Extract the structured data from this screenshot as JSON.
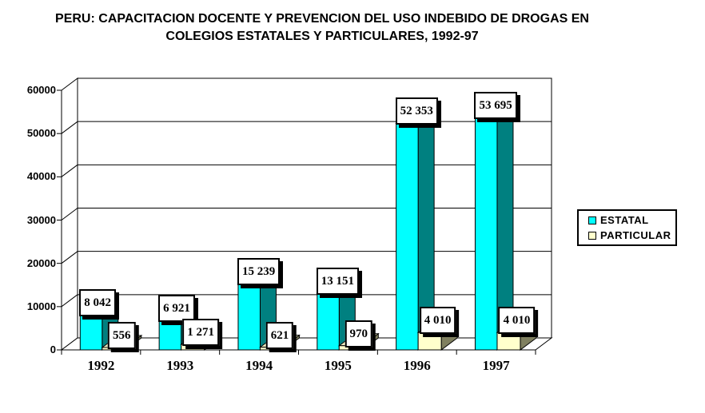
{
  "title": {
    "line1": "PERU: CAPACITACION DOCENTE Y PREVENCION DEL USO INDEBIDO DE DROGAS EN",
    "line2": "COLEGIOS ESTATALES Y PARTICULARES, 1992-97"
  },
  "legend": {
    "items": [
      {
        "label": "ESTATAL",
        "color": "#00FFFF"
      },
      {
        "label": "PARTICULAR",
        "color": "#FFFFCC"
      }
    ]
  },
  "chart_data": {
    "type": "bar",
    "style": "3d-clustered-column",
    "title": "PERU: CAPACITACION DOCENTE Y PREVENCION DEL USO INDEBIDO DE DROGAS EN COLEGIOS ESTATALES Y PARTICULARES, 1992-97",
    "categories": [
      "1992",
      "1993",
      "1994",
      "1995",
      "1996",
      "1997"
    ],
    "series": [
      {
        "name": "ESTATAL",
        "values": [
          8042,
          6921,
          15239,
          13151,
          52353,
          53695
        ],
        "value_labels": [
          "8 042",
          "6 921",
          "15 239",
          "13 151",
          "52 353",
          "53 695"
        ],
        "color_front": "#00FFFF",
        "color_side": "#008080",
        "color_top": "#00B8B8"
      },
      {
        "name": "PARTICULAR",
        "values": [
          556,
          1271,
          621,
          970,
          4010,
          4010
        ],
        "value_labels": [
          "556",
          "1 271",
          "621",
          "970",
          "4 010",
          "4 010"
        ],
        "color_front": "#FFFFCC",
        "color_side": "#808060",
        "color_top": "#EDEDC0"
      }
    ],
    "y_axis": {
      "min": 0,
      "max": 60000,
      "step": 10000,
      "tick_labels": [
        "0",
        "10000",
        "20000",
        "30000",
        "40000",
        "50000",
        "60000"
      ]
    },
    "xlabel": "",
    "ylabel": "",
    "grid": true,
    "legend_position": "right",
    "wall_color": "#FFFFFF",
    "outline_color": "#000000"
  }
}
